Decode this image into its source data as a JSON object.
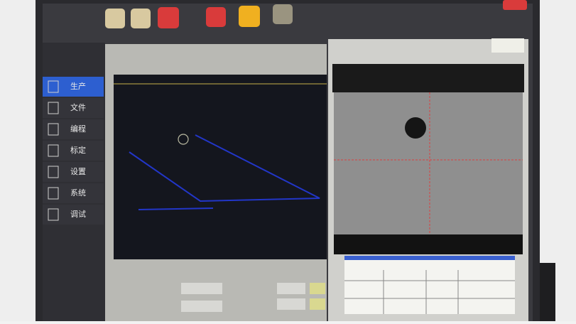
{
  "sidebar": {
    "items": [
      "生产",
      "文件",
      "编程",
      "标定",
      "设置",
      "系统",
      "调试"
    ]
  }
}
